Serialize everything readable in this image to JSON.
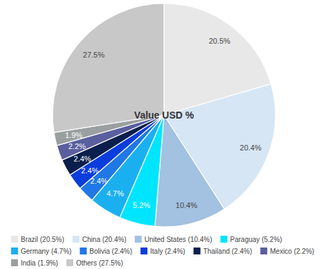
{
  "chart_data": {
    "type": "pie",
    "title": "Value USD %",
    "categories": [
      "Brazil (20.5%)",
      "China (20.4%)",
      "United States (10.4%)",
      "Paraguay (5.2%)",
      "Germany (4.7%)",
      "Bolivia (2.4%)",
      "Italy (2.4%)",
      "Thailand (2.4%)",
      "Mexico (2.2%)",
      "India (1.9%)",
      "Others (27.5%)"
    ],
    "values": [
      20.5,
      20.4,
      10.4,
      5.2,
      4.7,
      2.4,
      2.4,
      2.4,
      2.2,
      1.9,
      27.5
    ],
    "value_labels": [
      "20.5%",
      "20.4%",
      "10.4%",
      "5.2%",
      "4.7%",
      "2.4%",
      "2.4%",
      "2.4%",
      "2.2%",
      "1.9%",
      "27.5%"
    ],
    "colors": [
      "#e8e8e8",
      "#d6e6f5",
      "#a3c1e0",
      "#00e5ff",
      "#1ab0f0",
      "#1f78e6",
      "#0b3ddc",
      "#0b1f4d",
      "#5a5f9e",
      "#9aa0a0",
      "#c8c8c8"
    ],
    "data_labels": true,
    "legend": "bottom"
  }
}
